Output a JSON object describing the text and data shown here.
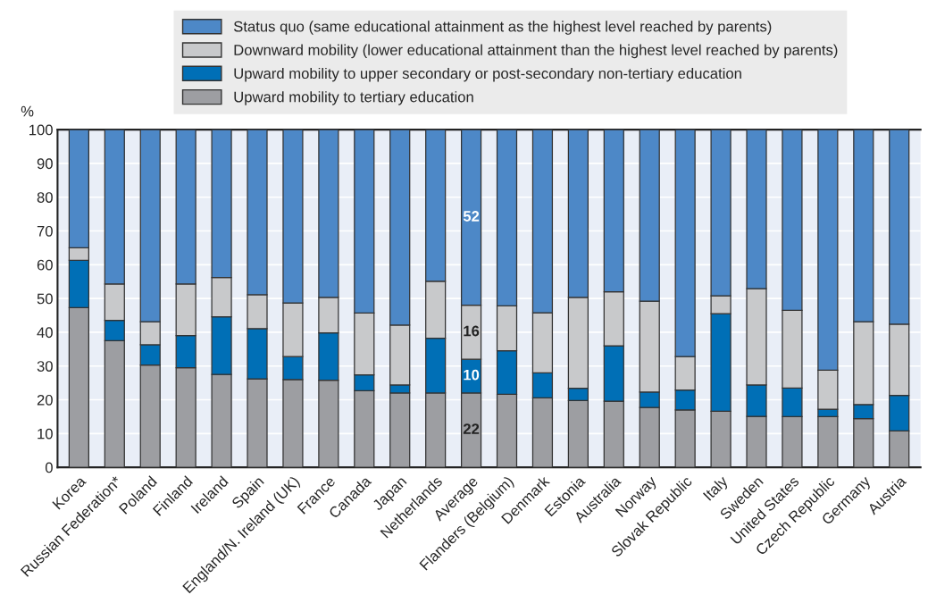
{
  "chart_data": {
    "type": "bar",
    "stacked": true,
    "ylabel": "%",
    "categories": [
      "Korea",
      "Russian Federation*",
      "Poland",
      "Finland",
      "Ireland",
      "Spain",
      "England/N. Ireland (UK)",
      "France",
      "Canada",
      "Japan",
      "Netherlands",
      "Average",
      "Flanders (Belgium)",
      "Denmark",
      "Estonia",
      "Australia",
      "Norway",
      "Slovak Republic",
      "Italy",
      "Sweden",
      "United States",
      "Czech Republic",
      "Germany",
      "Austria"
    ],
    "series": [
      {
        "name": "Upward mobility to tertiary education",
        "color": "#9d9ea2",
        "values": [
          47.3,
          37.5,
          30.3,
          29.5,
          27.5,
          26.2,
          26.0,
          25.8,
          22.7,
          22.0,
          22.0,
          22,
          21.6,
          20.6,
          19.8,
          19.6,
          17.7,
          17.0,
          16.6,
          15.1,
          15.0,
          15.0,
          14.4,
          10.8
        ],
        "value_labels": [
          null,
          null,
          null,
          null,
          null,
          null,
          null,
          null,
          null,
          null,
          null,
          "22",
          null,
          null,
          null,
          null,
          null,
          null,
          null,
          null,
          null,
          null,
          null,
          null
        ]
      },
      {
        "name": "Upward mobility to upper secondary or post-secondary non-tertiary education",
        "color": "#006fb6",
        "values": [
          14.0,
          6.0,
          6.0,
          9.5,
          17.1,
          14.9,
          6.8,
          14.0,
          4.7,
          2.4,
          16.2,
          10,
          12.9,
          7.4,
          3.6,
          16.4,
          4.6,
          5.9,
          28.9,
          9.3,
          8.5,
          2.2,
          4.2,
          10.5
        ],
        "value_labels": [
          null,
          null,
          null,
          null,
          null,
          null,
          null,
          null,
          null,
          null,
          null,
          "10",
          null,
          null,
          null,
          null,
          null,
          null,
          null,
          null,
          null,
          null,
          null,
          null
        ]
      },
      {
        "name": "Downward mobility (lower educational attainment than the highest level reached by parents)",
        "color": "#c8c9cb",
        "values": [
          3.7,
          10.8,
          6.8,
          15.3,
          11.6,
          10.0,
          15.9,
          10.5,
          18.3,
          17.7,
          16.9,
          16,
          13.3,
          17.8,
          26.9,
          16.0,
          26.9,
          9.9,
          5.3,
          28.5,
          23.0,
          11.6,
          24.5,
          21.1
        ],
        "value_labels": [
          null,
          null,
          null,
          null,
          null,
          null,
          null,
          null,
          null,
          null,
          null,
          "16",
          null,
          null,
          null,
          null,
          null,
          null,
          null,
          null,
          null,
          null,
          null,
          null
        ]
      },
      {
        "name": "Status quo (same educational attainment as the highest level reached by parents)",
        "color": "#4d88c7",
        "values": [
          35.0,
          45.7,
          56.9,
          45.7,
          43.8,
          48.9,
          51.3,
          49.7,
          54.3,
          57.9,
          44.9,
          52,
          52.2,
          54.2,
          49.7,
          48.0,
          50.8,
          67.2,
          49.2,
          47.1,
          53.5,
          71.2,
          56.9,
          57.6
        ],
        "value_labels": [
          null,
          null,
          null,
          null,
          null,
          null,
          null,
          null,
          null,
          null,
          null,
          "52",
          null,
          null,
          null,
          null,
          null,
          null,
          null,
          null,
          null,
          null,
          null,
          null
        ]
      }
    ],
    "ylim": [
      0,
      100
    ],
    "yticks": [
      0,
      10,
      20,
      30,
      40,
      50,
      60,
      70,
      80,
      90,
      100
    ],
    "grid": "y",
    "legend": "top"
  }
}
